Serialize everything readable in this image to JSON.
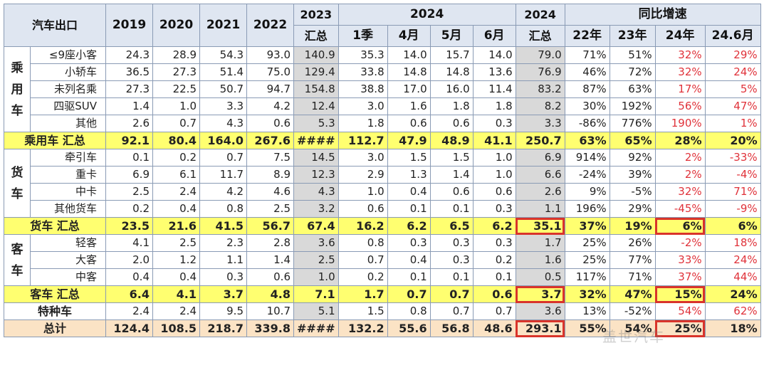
{
  "header": {
    "title": "汽车出口",
    "years": [
      "2019",
      "2020",
      "2021",
      "2022"
    ],
    "col_2023": "2023",
    "col_2023_sub": "汇总",
    "group_2024": "2024",
    "months": [
      "1季",
      "4月",
      "5月",
      "6月"
    ],
    "col_2024": "2024",
    "col_2024_sub": "汇总",
    "growth_group": "同比增速",
    "growth_cols": [
      "22年",
      "23年",
      "24年",
      "24.6月"
    ]
  },
  "groups": {
    "passenger": "乘用车",
    "truck": "货车",
    "bus": "客车"
  },
  "rows": [
    {
      "label": "≤9座小客",
      "v": [
        "24.3",
        "28.9",
        "54.3",
        "93.0",
        "140.9",
        "35.3",
        "14.0",
        "15.7",
        "14.0",
        "79.0",
        "71%",
        "51%",
        "32%",
        "29%"
      ]
    },
    {
      "label": "小轿车",
      "v": [
        "36.5",
        "27.3",
        "51.4",
        "75.0",
        "129.4",
        "33.8",
        "14.8",
        "14.8",
        "13.6",
        "76.9",
        "46%",
        "72%",
        "32%",
        "24%"
      ]
    },
    {
      "label": "未列名乘",
      "v": [
        "27.3",
        "22.5",
        "50.7",
        "94.7",
        "154.8",
        "38.8",
        "17.0",
        "16.0",
        "11.4",
        "83.2",
        "87%",
        "63%",
        "17%",
        "5%"
      ]
    },
    {
      "label": "四驱SUV",
      "v": [
        "1.4",
        "1.0",
        "3.3",
        "4.2",
        "12.4",
        "3.0",
        "1.6",
        "1.8",
        "1.8",
        "8.2",
        "30%",
        "192%",
        "56%",
        "47%"
      ]
    },
    {
      "label": "其他",
      "v": [
        "2.6",
        "0.7",
        "4.3",
        "0.6",
        "5.3",
        "1.8",
        "0.6",
        "0.6",
        "0.3",
        "3.3",
        "-86%",
        "776%",
        "190%",
        "1%"
      ]
    },
    {
      "label": "乘用车 汇总",
      "v": [
        "92.1",
        "80.4",
        "164.0",
        "267.6",
        "####",
        "112.7",
        "47.9",
        "48.9",
        "41.1",
        "250.7",
        "63%",
        "65%",
        "28%",
        "20%"
      ]
    },
    {
      "label": "牵引车",
      "v": [
        "0.1",
        "0.2",
        "0.7",
        "7.5",
        "14.5",
        "3.0",
        "1.5",
        "1.5",
        "1.0",
        "6.9",
        "914%",
        "92%",
        "2%",
        "-33%"
      ]
    },
    {
      "label": "重卡",
      "v": [
        "6.9",
        "6.1",
        "11.7",
        "8.9",
        "12.3",
        "2.9",
        "1.3",
        "1.4",
        "1.0",
        "6.6",
        "-24%",
        "39%",
        "2%",
        "-4%"
      ]
    },
    {
      "label": "中卡",
      "v": [
        "2.5",
        "2.4",
        "4.2",
        "4.6",
        "4.3",
        "1.0",
        "0.4",
        "0.6",
        "0.6",
        "2.6",
        "9%",
        "-5%",
        "32%",
        "71%"
      ]
    },
    {
      "label": "其他货车",
      "v": [
        "0.2",
        "0.4",
        "0.8",
        "2.5",
        "3.2",
        "0.6",
        "0.1",
        "0.1",
        "0.3",
        "1.1",
        "196%",
        "29%",
        "-45%",
        "-9%"
      ]
    },
    {
      "label": "货车 汇总",
      "v": [
        "23.5",
        "21.6",
        "41.5",
        "56.7",
        "67.4",
        "16.2",
        "6.2",
        "6.5",
        "6.2",
        "35.1",
        "37%",
        "19%",
        "6%",
        "6%"
      ]
    },
    {
      "label": "轻客",
      "v": [
        "4.1",
        "2.5",
        "2.3",
        "2.8",
        "3.6",
        "0.8",
        "0.3",
        "0.3",
        "0.3",
        "1.7",
        "25%",
        "26%",
        "-2%",
        "18%"
      ]
    },
    {
      "label": "大客",
      "v": [
        "2.0",
        "1.2",
        "1.1",
        "1.4",
        "2.5",
        "0.7",
        "0.4",
        "0.3",
        "0.2",
        "1.6",
        "25%",
        "77%",
        "33%",
        "24%"
      ]
    },
    {
      "label": "中客",
      "v": [
        "0.4",
        "0.4",
        "0.3",
        "0.6",
        "1.0",
        "0.2",
        "0.1",
        "0.1",
        "0.1",
        "0.5",
        "117%",
        "71%",
        "37%",
        "44%"
      ]
    },
    {
      "label": "客车 汇总",
      "v": [
        "6.4",
        "4.1",
        "3.7",
        "4.8",
        "7.1",
        "1.7",
        "0.7",
        "0.7",
        "0.6",
        "3.7",
        "32%",
        "47%",
        "15%",
        "24%"
      ]
    },
    {
      "label": "特种车",
      "v": [
        "2.4",
        "2.4",
        "9.5",
        "10.7",
        "5.1",
        "1.5",
        "0.8",
        "0.7",
        "0.7",
        "3.6",
        "13%",
        "-52%",
        "54%",
        "62%"
      ]
    },
    {
      "label": "总计",
      "v": [
        "124.4",
        "108.5",
        "218.7",
        "339.8",
        "####",
        "132.2",
        "55.6",
        "56.8",
        "48.6",
        "293.1",
        "55%",
        "54%",
        "25%",
        "18%"
      ]
    }
  ],
  "colors": {
    "header_bg": "#dfe6f1",
    "subtotal_bg": "#ffff70",
    "total_bg": "#fbe3c5",
    "shade_2023_2024": "#d9d9d9",
    "growth_red": "#e0323a",
    "highlight_box": "#d9342b"
  },
  "watermark": "盖世汽车"
}
